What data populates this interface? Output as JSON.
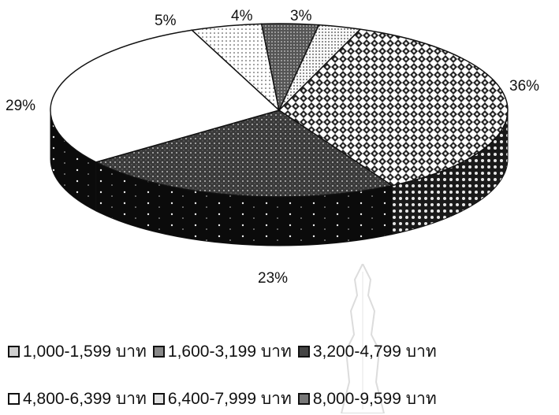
{
  "chart_data": {
    "type": "pie",
    "title": "",
    "style": "3d",
    "categories": [
      "1,000-1,599 บาท",
      "1,600-3,199 บาท",
      "3,200-4,799 บาท",
      "4,800-6,399 บาท",
      "6,400-7,999 บาท",
      "8,000-9,599 บาท"
    ],
    "values": [
      3,
      36,
      23,
      29,
      5,
      4
    ],
    "labels": [
      "3%",
      "36%",
      "23%",
      "29%",
      "5%",
      "4%"
    ],
    "legend_position": "bottom",
    "colors": [
      "#cfcfcf",
      "#f2f2f2",
      "#5a5a5a",
      "#ffffff",
      "#e6e6e6",
      "#8a8a8a"
    ],
    "side_colors": [
      "#999999",
      "#bdbdbd",
      "#161616",
      "#0d0d0d",
      "#a0a0a0",
      "#555555"
    ]
  },
  "legend": {
    "items": [
      {
        "label": "1,000-1,599 บาท",
        "icon": "dotted-swatch-icon"
      },
      {
        "label": "1,600-3,199 บาท",
        "icon": "checker-swatch-icon"
      },
      {
        "label": "3,200-4,799 บาท",
        "icon": "dark-swatch-icon"
      },
      {
        "label": "4,800-6,399 บาท",
        "icon": "white-swatch-icon"
      },
      {
        "label": "6,400-7,999 บาท",
        "icon": "light-dotted-swatch-icon"
      },
      {
        "label": "8,000-9,599 บาท",
        "icon": "grid-swatch-icon"
      }
    ]
  }
}
